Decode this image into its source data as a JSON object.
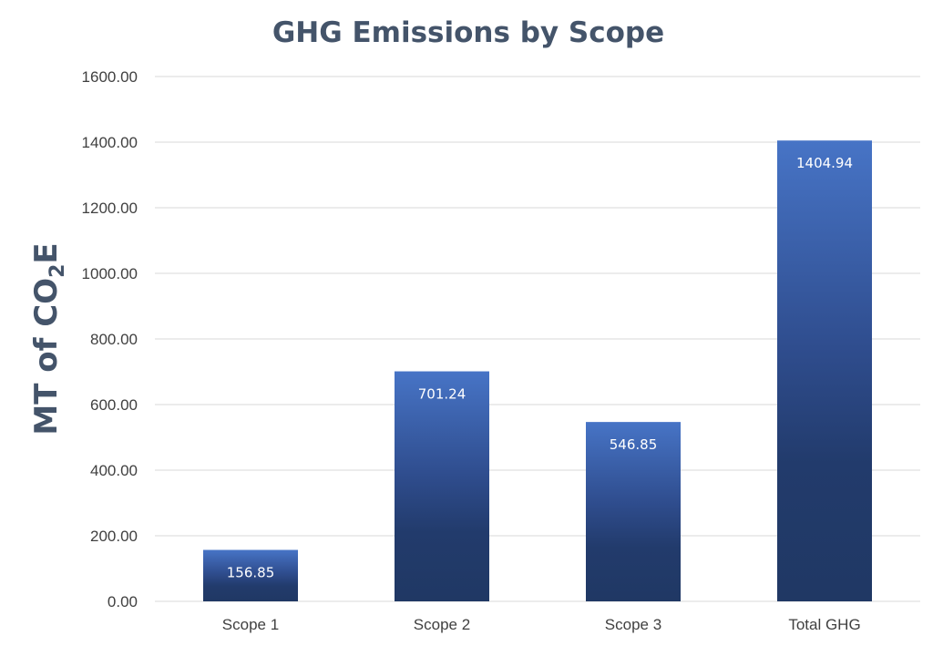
{
  "chart_data": {
    "type": "bar",
    "title": "GHG Emissions by Scope",
    "ylabel": {
      "main": "MT of CO",
      "subscript": "2",
      "suffix": "E"
    },
    "xlabel": "",
    "categories": [
      "Scope 1",
      "Scope 2",
      "Scope 3",
      "Total GHG"
    ],
    "values": [
      156.85,
      701.24,
      546.85,
      1404.94
    ],
    "data_labels": [
      "156.85",
      "701.24",
      "546.85",
      "1404.94"
    ],
    "ylim": [
      0,
      1600
    ],
    "yticks": [
      0,
      200,
      400,
      600,
      800,
      1000,
      1200,
      1400,
      1600
    ],
    "ytick_labels": [
      "0.00",
      "200.00",
      "400.00",
      "600.00",
      "800.00",
      "1000.00",
      "1200.00",
      "1400.00",
      "1600.00"
    ],
    "grid": true,
    "legend": "none",
    "colors": {
      "bar_top": "#4472c4",
      "bar_bottom": "#203864",
      "title": "#44546a",
      "gridline": "#d9d9d9",
      "tick_text": "#404040"
    }
  }
}
